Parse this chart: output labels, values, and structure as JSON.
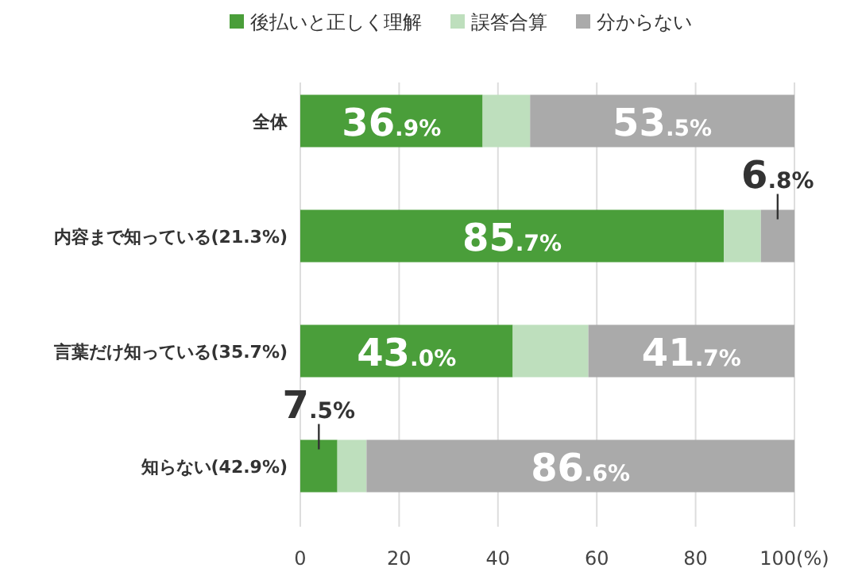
{
  "chart_data": {
    "type": "bar",
    "orientation": "horizontal",
    "stacked": true,
    "legend": "top",
    "grid": "x",
    "categories": [
      "全体",
      "内容まで知っている(21.3%)",
      "言葉だけ知っている(35.7%)",
      "知らない(42.9%)"
    ],
    "series": [
      {
        "name": "後払いと正しく理解",
        "color": "#4a9e3a",
        "values": [
          36.9,
          85.7,
          43.0,
          7.5
        ],
        "value_labels": [
          "36.9%",
          "85.7%",
          "43.0%",
          "7.5%"
        ]
      },
      {
        "name": "誤答合算",
        "color": "#bedfbd",
        "values": [
          9.6,
          7.5,
          15.3,
          5.9
        ]
      },
      {
        "name": "分からない",
        "color": "#aaaaaa",
        "values": [
          53.5,
          6.8,
          41.7,
          86.6
        ],
        "value_labels": [
          "53.5%",
          "6.8%",
          "41.7%",
          "86.6%"
        ]
      }
    ],
    "xlim": [
      0,
      100
    ],
    "xticks": [
      0,
      20,
      40,
      60,
      80,
      {
        "value": 100,
        "label": "100(%)"
      }
    ]
  }
}
